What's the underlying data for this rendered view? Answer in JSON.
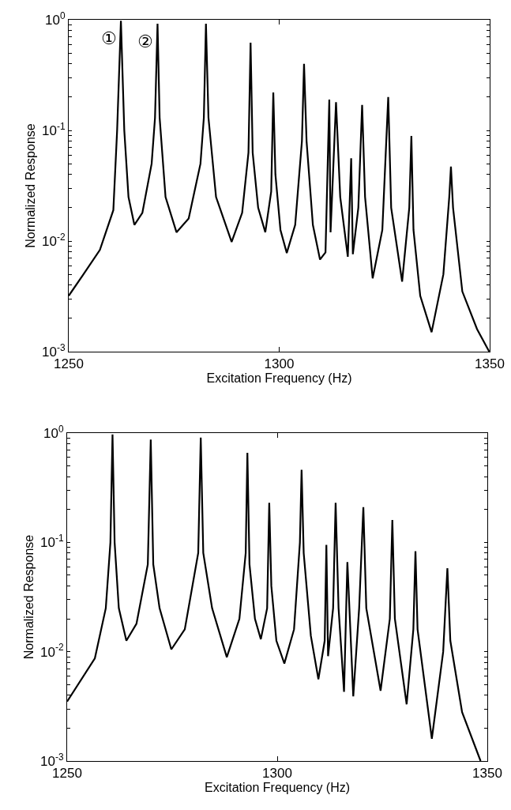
{
  "chart_data": [
    {
      "type": "line",
      "xlabel": "Excitation Frequency (Hz)",
      "ylabel": "Normalized Response",
      "log": "y",
      "marker": "none",
      "line_style": "solid",
      "xlim": [
        1250,
        1350
      ],
      "xticks": [
        1250,
        1300,
        1350
      ],
      "ylim": [
        0.001,
        1
      ],
      "yticks": [
        {
          "value": 0.001,
          "label": "10$^{-3}$"
        },
        {
          "value": 0.002,
          "label": null
        },
        {
          "value": 0.003,
          "label": null
        },
        {
          "value": 0.004,
          "label": null
        },
        {
          "value": 0.005,
          "label": null
        },
        {
          "value": 0.006,
          "label": null
        },
        {
          "value": 0.007,
          "label": null
        },
        {
          "value": 0.008,
          "label": null
        },
        {
          "value": 0.009,
          "label": null
        },
        {
          "value": 0.01,
          "label": "10$^{-2}$"
        },
        {
          "value": 0.02,
          "label": null
        },
        {
          "value": 0.03,
          "label": null
        },
        {
          "value": 0.04,
          "label": null
        },
        {
          "value": 0.05,
          "label": null
        },
        {
          "value": 0.06,
          "label": null
        },
        {
          "value": 0.07,
          "label": null
        },
        {
          "value": 0.08,
          "label": null
        },
        {
          "value": 0.09,
          "label": null
        },
        {
          "value": 0.1,
          "label": "10$^{-1}$"
        },
        {
          "value": 0.2,
          "label": null
        },
        {
          "value": 0.3,
          "label": null
        },
        {
          "value": 0.4,
          "label": null
        },
        {
          "value": 0.5,
          "label": null
        },
        {
          "value": 0.6,
          "label": null
        },
        {
          "value": 0.7,
          "label": null
        },
        {
          "value": 0.8,
          "label": null
        },
        {
          "value": 0.9,
          "label": null
        },
        {
          "value": 1,
          "label": "10$^{0}$"
        }
      ],
      "annotations": [
        {
          "text": "①",
          "x": 1262.4,
          "y": 0.98
        },
        {
          "text": "②",
          "x": 1271.1,
          "y": 0.92
        }
      ],
      "series": [
        {
          "color": "#000000",
          "x": [
            1250,
            1253.5,
            1257.4,
            1260.6,
            1261.5,
            1262.4,
            1263.2,
            1264.2,
            1265.6,
            1267.5,
            1269.7,
            1270.5,
            1271.1,
            1271.6,
            1273,
            1275.6,
            1278.5,
            1281.3,
            1282.1,
            1282.6,
            1283.2,
            1285,
            1288.7,
            1291.2,
            1292.7,
            1293.2,
            1293.7,
            1295,
            1296.7,
            1298.1,
            1298.6,
            1299.1,
            1300.3,
            1301.8,
            1303.8,
            1305.4,
            1305.9,
            1306.5,
            1308,
            1309.7,
            1311.0,
            1311.9,
            1312.2,
            1313.5,
            1314.5,
            1316.3,
            1317.1,
            1317.5,
            1318.8,
            1319.7,
            1320.4,
            1322.2,
            1324.5,
            1325.9,
            1326.6,
            1329.2,
            1330.9,
            1331.4,
            1331.9,
            1333.5,
            1336.2,
            1339,
            1340.4,
            1340.8,
            1341.3,
            1343.5,
            1347,
            1349.9
          ],
          "values": [
            0.0032,
            0.005,
            0.0083,
            0.019,
            0.1,
            0.98,
            0.1,
            0.025,
            0.014,
            0.018,
            0.05,
            0.13,
            0.92,
            0.13,
            0.025,
            0.012,
            0.016,
            0.05,
            0.13,
            0.92,
            0.13,
            0.025,
            0.0098,
            0.018,
            0.063,
            0.62,
            0.063,
            0.02,
            0.012,
            0.028,
            0.22,
            0.04,
            0.0126,
            0.0078,
            0.014,
            0.08,
            0.4,
            0.08,
            0.014,
            0.0068,
            0.0079,
            0.19,
            0.012,
            0.18,
            0.025,
            0.0072,
            0.056,
            0.0076,
            0.02,
            0.17,
            0.025,
            0.0046,
            0.0126,
            0.2,
            0.02,
            0.0043,
            0.02,
            0.089,
            0.0126,
            0.0032,
            0.0015,
            0.005,
            0.025,
            0.047,
            0.02,
            0.0035,
            0.0016,
            0.001
          ]
        }
      ]
    },
    {
      "type": "line",
      "xlabel": "Excitation Frequency (Hz)",
      "ylabel": "Normalized Response",
      "log": "y",
      "marker": "none",
      "line_style": "solid",
      "xlim": [
        1250,
        1350
      ],
      "xticks": [
        1250,
        1300,
        1350
      ],
      "ylim": [
        0.001,
        1
      ],
      "yticks": [
        {
          "value": 0.001,
          "label": "10$^{-3}$"
        },
        {
          "value": 0.002,
          "label": null
        },
        {
          "value": 0.003,
          "label": null
        },
        {
          "value": 0.004,
          "label": null
        },
        {
          "value": 0.005,
          "label": null
        },
        {
          "value": 0.006,
          "label": null
        },
        {
          "value": 0.007,
          "label": null
        },
        {
          "value": 0.008,
          "label": null
        },
        {
          "value": 0.009,
          "label": null
        },
        {
          "value": 0.01,
          "label": "10$^{-2}$"
        },
        {
          "value": 0.02,
          "label": null
        },
        {
          "value": 0.03,
          "label": null
        },
        {
          "value": 0.04,
          "label": null
        },
        {
          "value": 0.05,
          "label": null
        },
        {
          "value": 0.06,
          "label": null
        },
        {
          "value": 0.07,
          "label": null
        },
        {
          "value": 0.08,
          "label": null
        },
        {
          "value": 0.09,
          "label": null
        },
        {
          "value": 0.1,
          "label": "10$^{-1}$"
        },
        {
          "value": 0.2,
          "label": null
        },
        {
          "value": 0.3,
          "label": null
        },
        {
          "value": 0.4,
          "label": null
        },
        {
          "value": 0.5,
          "label": null
        },
        {
          "value": 0.6,
          "label": null
        },
        {
          "value": 0.7,
          "label": null
        },
        {
          "value": 0.8,
          "label": null
        },
        {
          "value": 0.9,
          "label": null
        },
        {
          "value": 1,
          "label": "10$^{0}$"
        }
      ],
      "series": [
        {
          "color": "#000000",
          "x": [
            1250,
            1256.6,
            1259.2,
            1260.3,
            1260.8,
            1261.3,
            1262.3,
            1264.1,
            1266.5,
            1269.2,
            1269.9,
            1270.5,
            1272,
            1274.8,
            1278,
            1281.2,
            1281.8,
            1282.4,
            1284.5,
            1288.0,
            1291,
            1292.5,
            1292.9,
            1293.4,
            1294.7,
            1296.1,
            1297.6,
            1298.1,
            1298.6,
            1299.8,
            1301.7,
            1304,
            1305.4,
            1305.8,
            1306.3,
            1308,
            1309.8,
            1311.3,
            1311.7,
            1312.1,
            1313.3,
            1313.9,
            1314.6,
            1315.9,
            1316.7,
            1318.1,
            1319.5,
            1320.5,
            1321.2,
            1324.6,
            1326.8,
            1327.4,
            1328,
            1330.8,
            1332.4,
            1332.9,
            1333.4,
            1336.8,
            1339.5,
            1340.5,
            1341.2,
            1344,
            1348.4
          ],
          "values": [
            0.0035,
            0.0087,
            0.025,
            0.1,
            0.97,
            0.1,
            0.025,
            0.0126,
            0.018,
            0.063,
            0.87,
            0.063,
            0.025,
            0.0105,
            0.016,
            0.08,
            0.91,
            0.08,
            0.025,
            0.0089,
            0.02,
            0.08,
            0.66,
            0.063,
            0.02,
            0.013,
            0.025,
            0.23,
            0.04,
            0.0126,
            0.0078,
            0.016,
            0.1,
            0.46,
            0.08,
            0.014,
            0.0056,
            0.0126,
            0.095,
            0.0091,
            0.025,
            0.23,
            0.025,
            0.0043,
            0.066,
            0.0039,
            0.025,
            0.21,
            0.025,
            0.0044,
            0.02,
            0.16,
            0.02,
            0.0033,
            0.016,
            0.083,
            0.016,
            0.0016,
            0.01,
            0.058,
            0.0126,
            0.0028,
            0.001
          ]
        }
      ]
    }
  ]
}
